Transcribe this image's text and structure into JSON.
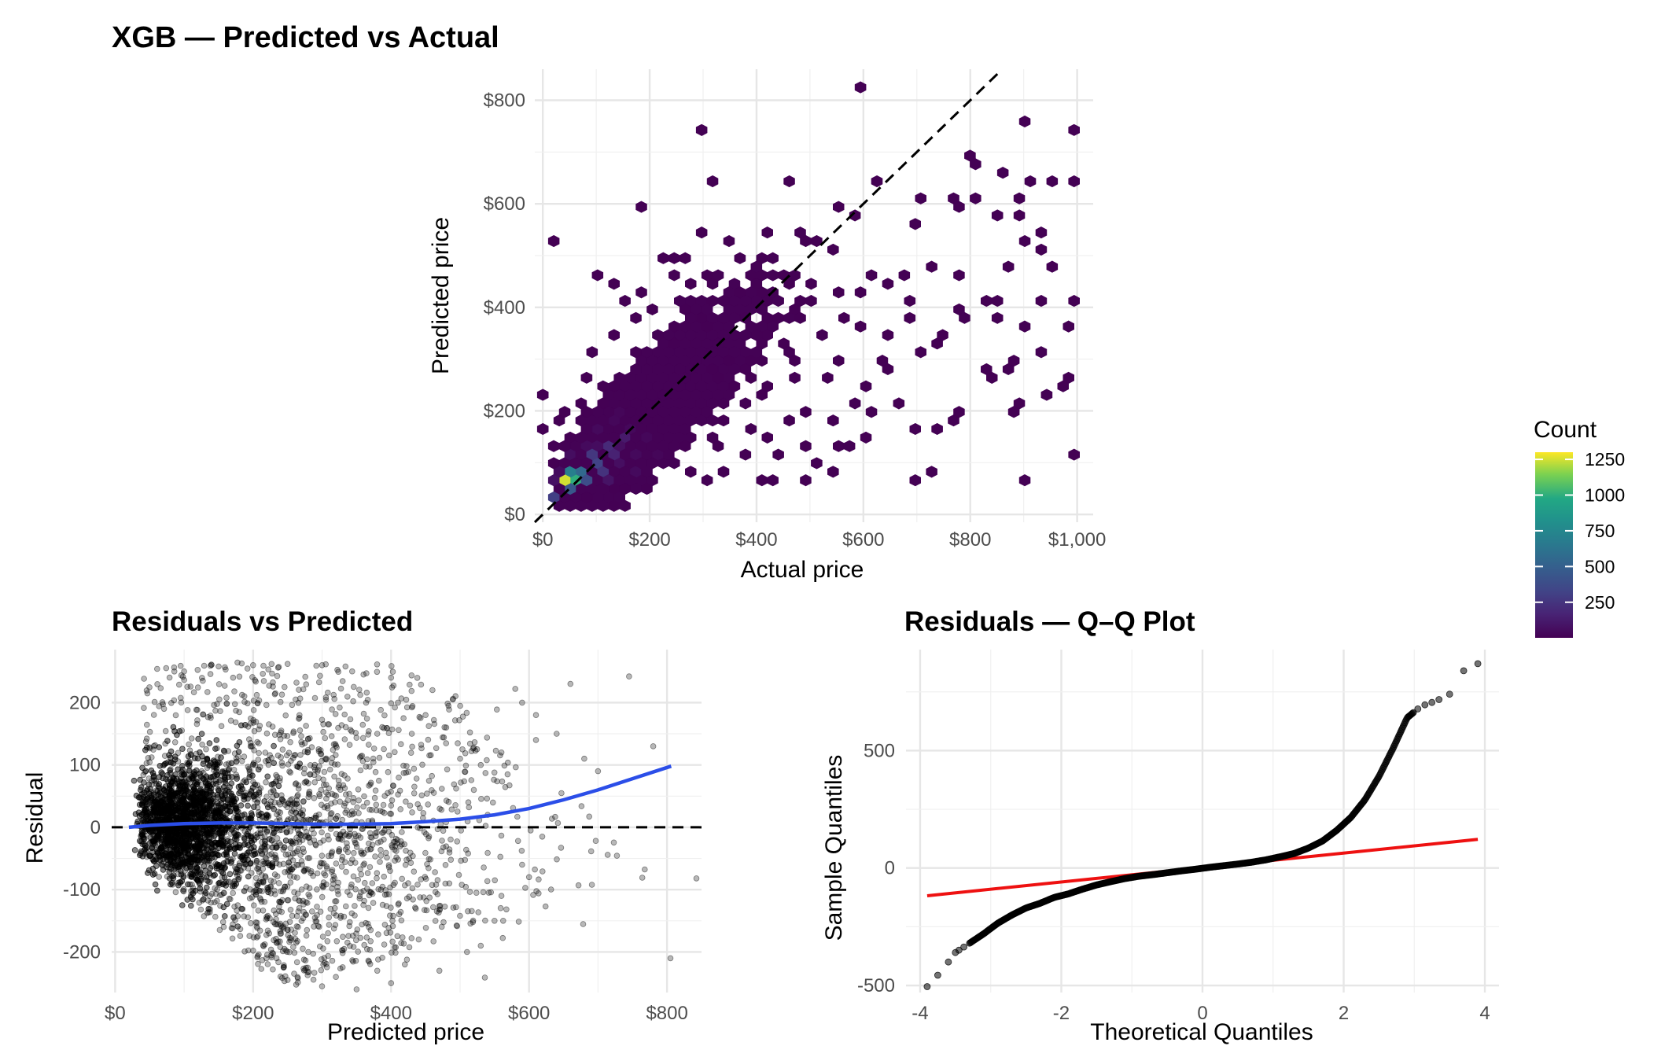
{
  "chart_data": [
    {
      "type": "heatmap",
      "subtype": "hexbin",
      "title": "XGB — Predicted vs Actual",
      "xlabel": "Actual price",
      "ylabel": "Predicted price",
      "xlim": [
        -15,
        1030
      ],
      "ylim": [
        -15,
        860
      ],
      "x_ticks": [
        0,
        200,
        400,
        600,
        800,
        1000
      ],
      "x_tick_labels": [
        "$0",
        "$200",
        "$400",
        "$600",
        "$800",
        "$1,000"
      ],
      "y_ticks": [
        0,
        200,
        400,
        600,
        800
      ],
      "y_tick_labels": [
        "$0",
        "$200",
        "$400",
        "$600",
        "$800"
      ],
      "reference_line": "y = x (dashed)",
      "legend": {
        "title": "Count",
        "placement": "right",
        "colorscale": "viridis",
        "range": [
          1,
          1300
        ],
        "ticks": [
          250,
          500,
          750,
          1000,
          1250
        ],
        "tick_labels": [
          "250",
          "500",
          "750",
          "1000",
          "1250"
        ]
      },
      "hexbin_dense_points": [
        [
          40,
          60,
          1250
        ],
        [
          70,
          60,
          1000
        ],
        [
          55,
          80,
          700
        ],
        [
          80,
          85,
          550
        ],
        [
          60,
          45,
          450
        ],
        [
          100,
          95,
          320
        ],
        [
          95,
          115,
          260
        ],
        [
          120,
          130,
          200
        ],
        [
          130,
          110,
          160
        ],
        [
          150,
          150,
          120
        ],
        [
          30,
          40,
          300
        ],
        [
          90,
          70,
          380
        ],
        [
          115,
          90,
          240
        ]
      ],
      "hexbin_sparse_points": [
        [
          600,
          820
        ],
        [
          290,
          740
        ],
        [
          900,
          760
        ],
        [
          1000,
          740
        ],
        [
          800,
          700
        ],
        [
          310,
          640
        ],
        [
          470,
          640
        ],
        [
          810,
          680
        ],
        [
          860,
          665
        ],
        [
          910,
          650
        ],
        [
          950,
          640
        ],
        [
          990,
          640
        ],
        [
          630,
          640
        ],
        [
          180,
          590
        ],
        [
          700,
          610
        ],
        [
          760,
          610
        ],
        [
          800,
          610
        ],
        [
          780,
          590
        ],
        [
          900,
          610
        ],
        [
          560,
          600
        ],
        [
          590,
          580
        ],
        [
          900,
          580
        ],
        [
          850,
          580
        ],
        [
          15,
          530
        ],
        [
          940,
          545
        ],
        [
          700,
          560
        ],
        [
          900,
          520
        ],
        [
          930,
          505
        ],
        [
          950,
          480
        ],
        [
          340,
          520
        ],
        [
          410,
          540
        ],
        [
          260,
          490
        ],
        [
          220,
          500
        ],
        [
          300,
          470
        ],
        [
          720,
          480
        ],
        [
          780,
          470
        ],
        [
          880,
          480
        ],
        [
          680,
          460
        ],
        [
          650,
          440
        ],
        [
          600,
          430
        ],
        [
          940,
          410
        ],
        [
          990,
          410
        ],
        [
          990,
          370
        ],
        [
          860,
          410
        ],
        [
          830,
          410
        ],
        [
          770,
          400
        ],
        [
          780,
          380
        ],
        [
          680,
          410
        ],
        [
          690,
          380
        ],
        [
          900,
          370
        ],
        [
          860,
          380
        ],
        [
          750,
          350
        ],
        [
          640,
          350
        ],
        [
          700,
          320
        ],
        [
          740,
          330
        ],
        [
          880,
          300
        ],
        [
          940,
          310
        ],
        [
          830,
          280
        ],
        [
          850,
          270
        ],
        [
          990,
          270
        ],
        [
          970,
          250
        ],
        [
          950,
          230
        ],
        [
          900,
          220
        ],
        [
          890,
          200
        ],
        [
          780,
          200
        ],
        [
          760,
          180
        ],
        [
          740,
          170
        ],
        [
          700,
          170
        ],
        [
          720,
          90
        ],
        [
          870,
          280
        ],
        [
          660,
          220
        ],
        [
          620,
          190
        ],
        [
          600,
          150
        ],
        [
          560,
          140
        ],
        [
          580,
          130
        ],
        [
          520,
          100
        ],
        [
          550,
          90
        ],
        [
          500,
          130
        ],
        [
          990,
          120
        ],
        [
          900,
          60
        ],
        [
          700,
          60
        ],
        [
          490,
          60
        ],
        [
          430,
          60
        ],
        [
          400,
          70
        ],
        [
          340,
          80
        ],
        [
          270,
          90
        ],
        [
          300,
          60
        ],
        [
          180,
          50
        ],
        [
          90,
          30
        ],
        [
          30,
          20
        ],
        [
          10,
          170
        ],
        [
          20,
          130
        ],
        [
          0,
          230
        ],
        [
          50,
          200
        ],
        [
          80,
          260
        ],
        [
          100,
          310
        ],
        [
          140,
          350
        ],
        [
          170,
          380
        ],
        [
          150,
          420
        ],
        [
          180,
          430
        ],
        [
          240,
          500
        ],
        [
          200,
          400
        ],
        [
          130,
          450
        ],
        [
          110,
          470
        ],
        [
          250,
          410
        ],
        [
          300,
          400
        ],
        [
          320,
          450
        ],
        [
          360,
          430
        ],
        [
          400,
          460
        ],
        [
          420,
          500
        ],
        [
          450,
          470
        ],
        [
          500,
          530
        ],
        [
          520,
          520
        ],
        [
          550,
          510
        ],
        [
          480,
          380
        ],
        [
          520,
          350
        ],
        [
          550,
          300
        ],
        [
          570,
          380
        ],
        [
          600,
          370
        ],
        [
          630,
          300
        ],
        [
          650,
          280
        ],
        [
          610,
          250
        ],
        [
          470,
          260
        ],
        [
          430,
          240
        ],
        [
          380,
          280
        ],
        [
          400,
          230
        ],
        [
          260,
          330
        ],
        [
          220,
          300
        ],
        [
          300,
          280
        ],
        [
          340,
          250
        ],
        [
          230,
          220
        ],
        [
          200,
          200
        ],
        [
          280,
          200
        ],
        [
          320,
          180
        ],
        [
          380,
          170
        ],
        [
          420,
          150
        ],
        [
          460,
          180
        ],
        [
          500,
          200
        ],
        [
          450,
          110
        ],
        [
          380,
          120
        ],
        [
          330,
          140
        ],
        [
          260,
          150
        ],
        [
          190,
          130
        ],
        [
          170,
          170
        ],
        [
          150,
          250
        ],
        [
          90,
          200
        ],
        [
          60,
          140
        ],
        [
          120,
          250
        ],
        [
          210,
          260
        ],
        [
          350,
          330
        ],
        [
          430,
          340
        ],
        [
          480,
          300
        ],
        [
          540,
          260
        ],
        [
          540,
          180
        ],
        [
          590,
          210
        ],
        [
          420,
          400
        ],
        [
          350,
          380
        ],
        [
          270,
          360
        ],
        [
          180,
          320
        ],
        [
          240,
          270
        ],
        [
          310,
          320
        ],
        [
          390,
          300
        ],
        [
          450,
          380
        ],
        [
          510,
          420
        ],
        [
          560,
          430
        ],
        [
          610,
          460
        ],
        [
          360,
          500
        ],
        [
          300,
          540
        ],
        [
          270,
          440
        ]
      ],
      "hexbin_mid_points": [
        [
          60,
          110,
          60
        ],
        [
          80,
          130,
          45
        ],
        [
          110,
          160,
          40
        ],
        [
          130,
          180,
          30
        ],
        [
          150,
          190,
          25
        ],
        [
          100,
          140,
          55
        ],
        [
          140,
          140,
          70
        ],
        [
          170,
          160,
          35
        ],
        [
          40,
          90,
          50
        ],
        [
          30,
          70,
          80
        ],
        [
          120,
          70,
          90
        ],
        [
          150,
          100,
          65
        ],
        [
          180,
          120,
          40
        ],
        [
          200,
          150,
          30
        ],
        [
          170,
          90,
          45
        ],
        [
          210,
          110,
          25
        ]
      ]
    },
    {
      "type": "scatter",
      "title": "Residuals vs Predicted",
      "xlabel": "Predicted price",
      "ylabel": "Residual",
      "xlim": [
        -5,
        850
      ],
      "ylim": [
        -265,
        285
      ],
      "x_ticks": [
        0,
        200,
        400,
        600,
        800
      ],
      "x_tick_labels": [
        "$0",
        "$200",
        "$400",
        "$600",
        "$800"
      ],
      "y_ticks": [
        -200,
        -100,
        0,
        100,
        200
      ],
      "y_tick_labels": [
        "-200",
        "-100",
        "0",
        "100",
        "200"
      ],
      "reference_line": "y = 0 (dashed)",
      "smooth_line": {
        "color": "#2b4ee8",
        "x": [
          20,
          50,
          100,
          150,
          200,
          250,
          300,
          350,
          400,
          450,
          500,
          550,
          600,
          650,
          700,
          750,
          806
        ],
        "y": [
          0,
          3,
          6,
          7,
          7,
          6,
          5,
          5,
          6,
          9,
          13,
          20,
          30,
          44,
          60,
          78,
          98
        ]
      },
      "outlier_points": [
        [
          805,
          -210
        ],
        [
          745,
          242
        ],
        [
          780,
          130
        ],
        [
          660,
          230
        ],
        [
          580,
          222
        ],
        [
          590,
          200
        ],
        [
          610,
          180
        ],
        [
          640,
          150
        ],
        [
          680,
          110
        ],
        [
          700,
          90
        ],
        [
          610,
          140
        ],
        [
          560,
          120
        ],
        [
          530,
          100
        ],
        [
          600,
          -80
        ],
        [
          590,
          -60
        ],
        [
          560,
          -110
        ],
        [
          550,
          -150
        ],
        [
          530,
          -190
        ],
        [
          510,
          -200
        ],
        [
          470,
          -230
        ],
        [
          440,
          -180
        ],
        [
          420,
          -220
        ],
        [
          400,
          -250
        ],
        [
          380,
          -230
        ],
        [
          350,
          -260
        ],
        [
          320,
          -240
        ],
        [
          300,
          -255
        ],
        [
          280,
          -200
        ],
        [
          250,
          -245
        ],
        [
          410,
          200
        ],
        [
          380,
          150
        ],
        [
          360,
          245
        ],
        [
          400,
          240
        ],
        [
          460,
          220
        ],
        [
          480,
          160
        ],
        [
          500,
          110
        ],
        [
          520,
          60
        ],
        [
          540,
          20
        ],
        [
          450,
          180
        ],
        [
          430,
          150
        ],
        [
          300,
          260
        ],
        [
          250,
          262
        ],
        [
          200,
          260
        ],
        [
          150,
          258
        ],
        [
          100,
          250
        ]
      ]
    },
    {
      "type": "scatter",
      "subtype": "qq",
      "title": "Residuals — Q–Q Plot",
      "xlabel": "Theoretical Quantiles",
      "ylabel": "Sample Quantiles",
      "xlim": [
        -4.2,
        4.2
      ],
      "ylim": [
        -530,
        930
      ],
      "x_ticks": [
        -4,
        -2,
        0,
        2,
        4
      ],
      "x_tick_labels": [
        "-4",
        "-2",
        "0",
        "2",
        "4"
      ],
      "y_ticks": [
        -500,
        0,
        500
      ],
      "y_tick_labels": [
        "-500",
        "0",
        "500"
      ],
      "reference_line": {
        "color": "#ee1111",
        "x": [
          -3.9,
          3.9
        ],
        "y": [
          -118,
          122
        ]
      },
      "sample_curve": {
        "x": [
          -3.9,
          -3.7,
          -3.5,
          -3.3,
          -3.1,
          -2.9,
          -2.7,
          -2.5,
          -2.3,
          -2.1,
          -1.9,
          -1.7,
          -1.5,
          -1.3,
          -1.1,
          -0.9,
          -0.7,
          -0.5,
          -0.3,
          -0.1,
          0.1,
          0.3,
          0.5,
          0.7,
          0.9,
          1.1,
          1.3,
          1.5,
          1.7,
          1.9,
          2.1,
          2.3,
          2.5,
          2.7,
          2.9,
          3.1,
          3.3,
          3.5,
          3.7,
          3.9
        ],
        "y": [
          -505,
          -440,
          -360,
          -320,
          -280,
          -235,
          -200,
          -170,
          -150,
          -125,
          -110,
          -90,
          -72,
          -58,
          -45,
          -35,
          -28,
          -20,
          -12,
          -5,
          3,
          10,
          17,
          25,
          35,
          48,
          62,
          85,
          115,
          160,
          215,
          290,
          390,
          510,
          640,
          690,
          710,
          740,
          840,
          870
        ]
      }
    }
  ]
}
